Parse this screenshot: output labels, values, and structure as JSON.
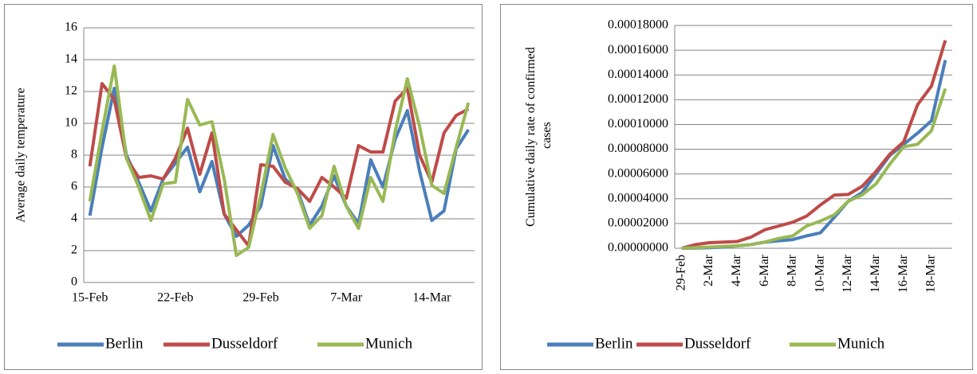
{
  "chart_data": [
    {
      "type": "line",
      "ylabel": "Average daily temperature",
      "categories": [
        "15-Feb",
        null,
        null,
        null,
        null,
        null,
        null,
        "22-Feb",
        null,
        null,
        null,
        null,
        null,
        null,
        "29-Feb",
        null,
        null,
        null,
        null,
        null,
        null,
        "7-Mar",
        null,
        null,
        null,
        null,
        null,
        null,
        "14-Mar",
        null,
        null,
        null
      ],
      "series": [
        {
          "name": "Berlin",
          "color": "#4a7ebb",
          "values": [
            4.2,
            8.5,
            12.2,
            8,
            6.3,
            4.5,
            6.5,
            7.5,
            8.5,
            5.7,
            7.6,
            4.3,
            2.9,
            3.6,
            4.8,
            8.6,
            6.5,
            5.8,
            3.6,
            4.8,
            6.7,
            4.8,
            3.7,
            7.7,
            6,
            9,
            10.8,
            7,
            3.9,
            4.5,
            8.4,
            9.6
          ]
        },
        {
          "name": "Dusseldorf",
          "color": "#be4b48",
          "values": [
            7.3,
            12.5,
            11.5,
            7.8,
            6.6,
            6.7,
            6.5,
            7.8,
            9.7,
            6.8,
            9.4,
            4.3,
            3.3,
            2.3,
            7.4,
            7.3,
            6.3,
            5.9,
            5.1,
            6.6,
            6,
            5.3,
            8.6,
            8.2,
            8.2,
            11.4,
            12.2,
            8,
            6.3,
            9.4,
            10.5,
            10.9
          ]
        },
        {
          "name": "Munich",
          "color": "#98b954",
          "values": [
            5.1,
            9.5,
            13.6,
            7.8,
            6,
            3.9,
            6.2,
            6.3,
            11.5,
            9.9,
            10.1,
            6.5,
            1.7,
            2.2,
            5.5,
            9.3,
            7.2,
            5.6,
            3.4,
            4.2,
            7.3,
            4.8,
            3.4,
            6.6,
            5.1,
            9.5,
            12.8,
            9.8,
            6.1,
            5.6,
            8.5,
            11.3
          ]
        }
      ],
      "ylim": [
        0,
        16
      ],
      "yticks": [
        0,
        2,
        4,
        6,
        8,
        10,
        12,
        14,
        16
      ],
      "grid": true,
      "legend": "bottom"
    },
    {
      "type": "line",
      "ylabel": "Cumulative daily rate of confirmed cases",
      "categories": [
        "29-Feb",
        null,
        "2-Mar",
        null,
        "4-Mar",
        null,
        "6-Mar",
        null,
        "8-Mar",
        null,
        "10-Mar",
        null,
        "12-Mar",
        null,
        "14-Mar",
        null,
        "16-Mar",
        null,
        "18-Mar",
        null
      ],
      "series": [
        {
          "name": "Berlin",
          "color": "#4a7ebb",
          "values": [
            0,
            2e-07,
            5e-07,
            1e-06,
            2e-06,
            3e-06,
            5e-06,
            6e-06,
            7e-06,
            1e-05,
            1.25e-05,
            2.5e-05,
            3.8e-05,
            4.5e-05,
            6e-05,
            7.5e-05,
            8.4e-05,
            9.3e-05,
            0.000103,
            0.000152
          ]
        },
        {
          "name": "Dusseldorf",
          "color": "#be4b48",
          "values": [
            0,
            3e-06,
            4.5e-06,
            5e-06,
            5.5e-06,
            9e-06,
            1.5e-05,
            1.8e-05,
            2.1e-05,
            2.6e-05,
            3.5e-05,
            4.3e-05,
            4.35e-05,
            5e-05,
            6.2e-05,
            7.6e-05,
            8.6e-05,
            0.000116,
            0.000131,
            0.000168
          ]
        },
        {
          "name": "Munich",
          "color": "#98b954",
          "values": [
            0,
            5e-07,
            1e-06,
            1.5e-06,
            2e-06,
            3e-06,
            5e-06,
            8e-06,
            1e-05,
            1.8e-05,
            2.2e-05,
            2.7e-05,
            3.8e-05,
            4.3e-05,
            5.2e-05,
            6.8e-05,
            8.2e-05,
            8.4e-05,
            9.5e-05,
            0.000129
          ]
        }
      ],
      "ylim": [
        0,
        0.00018
      ],
      "yticks": [
        {
          "value": 0,
          "label": "0.00000000"
        },
        {
          "value": 2e-05,
          "label": "0.00002000"
        },
        {
          "value": 4e-05,
          "label": "0.00004000"
        },
        {
          "value": 6e-05,
          "label": "0.00006000"
        },
        {
          "value": 8e-05,
          "label": "0.00008000"
        },
        {
          "value": 0.0001,
          "label": "0.00010000"
        },
        {
          "value": 0.00012,
          "label": "0.00012000"
        },
        {
          "value": 0.00014,
          "label": "0.00014000"
        },
        {
          "value": 0.00016,
          "label": "0.00016000"
        },
        {
          "value": 0.00018,
          "label": "0.00018000"
        }
      ],
      "grid": true,
      "legend": "bottom"
    }
  ]
}
